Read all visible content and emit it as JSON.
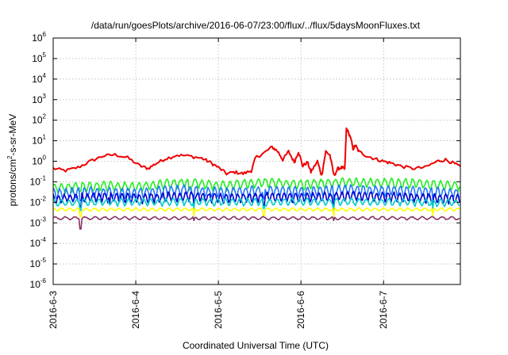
{
  "chart_data": {
    "type": "line",
    "title": "/data/run/goesPlots/archive/2016-06-07/23:00/flux/../flux/5daysMoonFluxes.txt",
    "xlabel": "Coordinated Universal Time (UTC)",
    "ylabel": "protons/cm2-s-sr-MeV",
    "ylabel_parts": {
      "pre": "protons/cm",
      "sup": "2",
      "post": "-s-sr-MeV"
    },
    "xlim": [
      0,
      4.93
    ],
    "ylim": [
      1e-06,
      1000000.0
    ],
    "y_scale": "log",
    "grid": true,
    "legend": "none",
    "x_ticks": [
      {
        "x": 0,
        "label": "2016-6-3"
      },
      {
        "x": 1,
        "label": "2016-6-4"
      },
      {
        "x": 2,
        "label": "2016-6-5"
      },
      {
        "x": 3,
        "label": "2016-6-6"
      },
      {
        "x": 4,
        "label": "2016-6-7"
      }
    ],
    "y_ticks": [
      {
        "exp": -6,
        "base": "10",
        "sup": "-6"
      },
      {
        "exp": -5,
        "base": "10",
        "sup": "-5"
      },
      {
        "exp": -4,
        "base": "10",
        "sup": "-4"
      },
      {
        "exp": -3,
        "base": "10",
        "sup": "-3"
      },
      {
        "exp": -2,
        "base": "10",
        "sup": "-2"
      },
      {
        "exp": -1,
        "base": "10",
        "sup": "-1"
      },
      {
        "exp": 0,
        "base": "10",
        "sup": "0"
      },
      {
        "exp": 1,
        "base": "10",
        "sup": "1"
      },
      {
        "exp": 2,
        "base": "10",
        "sup": "2"
      },
      {
        "exp": 3,
        "base": "10",
        "sup": "3"
      },
      {
        "exp": 4,
        "base": "10",
        "sup": "4"
      },
      {
        "exp": 5,
        "base": "10",
        "sup": "5"
      },
      {
        "exp": 6,
        "base": "10",
        "sup": "6"
      }
    ],
    "series": [
      {
        "color": "#ee0000",
        "kind": "trend",
        "spikes": [],
        "points": [
          [
            0,
            0.45
          ],
          [
            0.15,
            0.35
          ],
          [
            0.3,
            0.5
          ],
          [
            0.45,
            1.0
          ],
          [
            0.6,
            1.8
          ],
          [
            0.75,
            2.1
          ],
          [
            0.9,
            1.5
          ],
          [
            1.05,
            0.6
          ],
          [
            1.15,
            0.45
          ],
          [
            1.25,
            0.8
          ],
          [
            1.35,
            1.3
          ],
          [
            1.5,
            2.0
          ],
          [
            1.65,
            1.8
          ],
          [
            1.8,
            1.4
          ],
          [
            1.9,
            0.9
          ],
          [
            2.0,
            0.5
          ],
          [
            2.1,
            0.25
          ],
          [
            2.2,
            0.3
          ],
          [
            2.3,
            0.25
          ],
          [
            2.4,
            0.35
          ],
          [
            2.45,
            1.5
          ],
          [
            2.55,
            2.5
          ],
          [
            2.65,
            5.0
          ],
          [
            2.72,
            3.0
          ],
          [
            2.78,
            1.2
          ],
          [
            2.85,
            3.0
          ],
          [
            2.92,
            0.9
          ],
          [
            2.97,
            3.0
          ],
          [
            3.02,
            0.6
          ],
          [
            3.08,
            0.9
          ],
          [
            3.12,
            0.3
          ],
          [
            3.2,
            1.0
          ],
          [
            3.25,
            0.2
          ],
          [
            3.3,
            3.0
          ],
          [
            3.35,
            2.0
          ],
          [
            3.4,
            0.2
          ],
          [
            3.45,
            0.45
          ],
          [
            3.5,
            0.5
          ],
          [
            3.53,
            0.4
          ],
          [
            3.55,
            40
          ],
          [
            3.6,
            15
          ],
          [
            3.63,
            4.0
          ],
          [
            3.66,
            6.0
          ],
          [
            3.7,
            3.0
          ],
          [
            3.8,
            1.8
          ],
          [
            3.9,
            1.3
          ],
          [
            4.0,
            1.0
          ],
          [
            4.1,
            0.8
          ],
          [
            4.2,
            0.6
          ],
          [
            4.35,
            0.45
          ],
          [
            4.5,
            0.5
          ],
          [
            4.65,
            1.0
          ],
          [
            4.75,
            1.2
          ],
          [
            4.85,
            0.8
          ],
          [
            4.93,
            0.55
          ]
        ]
      },
      {
        "color": "#22ee22",
        "kind": "noise",
        "base": 0.08,
        "amp": 0.45,
        "period": 0.085,
        "phase": 0.3,
        "spikes": [
          [
            0.33,
            0.035
          ],
          [
            1.65,
            0.04
          ],
          [
            3.05,
            0.045
          ]
        ],
        "env": [
          [
            0,
            0.05
          ],
          [
            0.6,
            0.07
          ],
          [
            1.0,
            0.06
          ],
          [
            1.6,
            0.1
          ],
          [
            2.0,
            0.07
          ],
          [
            2.6,
            0.1
          ],
          [
            3.0,
            0.08
          ],
          [
            3.6,
            0.1
          ],
          [
            4.3,
            0.09
          ],
          [
            4.93,
            0.07
          ]
        ]
      },
      {
        "color": "#2277ff",
        "kind": "noise",
        "base": 0.035,
        "amp": 0.5,
        "period": 0.075,
        "phase": 1.1,
        "spikes": [
          [
            0.33,
            0.012
          ],
          [
            1.7,
            0.014
          ],
          [
            2.55,
            0.015
          ],
          [
            3.4,
            0.013
          ],
          [
            4.6,
            0.014
          ]
        ],
        "env": [
          [
            0,
            0.03
          ],
          [
            0.6,
            0.035
          ],
          [
            1.0,
            0.03
          ],
          [
            1.6,
            0.045
          ],
          [
            2.0,
            0.032
          ],
          [
            2.6,
            0.04
          ],
          [
            3.0,
            0.035
          ],
          [
            3.6,
            0.045
          ],
          [
            4.3,
            0.038
          ],
          [
            4.93,
            0.03
          ]
        ]
      },
      {
        "color": "#0000cc",
        "kind": "noise",
        "base": 0.018,
        "amp": 0.45,
        "period": 0.07,
        "phase": 2.0,
        "spikes": [
          [
            0.33,
            0.006
          ],
          [
            0.68,
            0.008
          ],
          [
            1.7,
            0.007
          ],
          [
            2.55,
            0.007
          ],
          [
            3.4,
            0.006
          ],
          [
            4.6,
            0.007
          ]
        ],
        "env": [
          [
            0,
            0.016
          ],
          [
            0.6,
            0.02
          ],
          [
            1.0,
            0.017
          ],
          [
            1.6,
            0.022
          ],
          [
            2.0,
            0.017
          ],
          [
            2.6,
            0.02
          ],
          [
            3.0,
            0.018
          ],
          [
            3.6,
            0.022
          ],
          [
            4.3,
            0.019
          ],
          [
            4.93,
            0.016
          ]
        ]
      },
      {
        "color": "#00cccc",
        "kind": "noise",
        "base": 0.011,
        "amp": 0.35,
        "period": 0.09,
        "phase": 0.7,
        "spikes": [
          [
            0.33,
            0.004
          ],
          [
            1.7,
            0.005
          ],
          [
            2.55,
            0.005
          ],
          [
            3.4,
            0.004
          ],
          [
            4.6,
            0.005
          ]
        ],
        "env": [
          [
            0,
            0.01
          ],
          [
            1.0,
            0.011
          ],
          [
            2.0,
            0.011
          ],
          [
            3.0,
            0.011
          ],
          [
            4.0,
            0.011
          ],
          [
            4.93,
            0.01
          ]
        ]
      },
      {
        "color": "#ffff00",
        "kind": "noise",
        "base": 0.0045,
        "amp": 0.15,
        "period": 0.1,
        "phase": 1.6,
        "spikes": [
          [
            0.33,
            0.002
          ],
          [
            1.7,
            0.0022
          ],
          [
            2.55,
            0.0022
          ],
          [
            3.4,
            0.002
          ],
          [
            4.6,
            0.0022
          ]
        ],
        "env": [
          [
            0,
            0.0045
          ],
          [
            4.93,
            0.0045
          ]
        ]
      },
      {
        "color": "#883366",
        "kind": "noise",
        "base": 0.0017,
        "amp": 0.15,
        "period": 0.12,
        "phase": 0.2,
        "spikes": [
          [
            0.33,
            0.0005
          ],
          [
            1.7,
            0.0013
          ],
          [
            3.4,
            0.0013
          ]
        ],
        "env": [
          [
            0,
            0.0017
          ],
          [
            4.93,
            0.0017
          ]
        ]
      }
    ]
  }
}
